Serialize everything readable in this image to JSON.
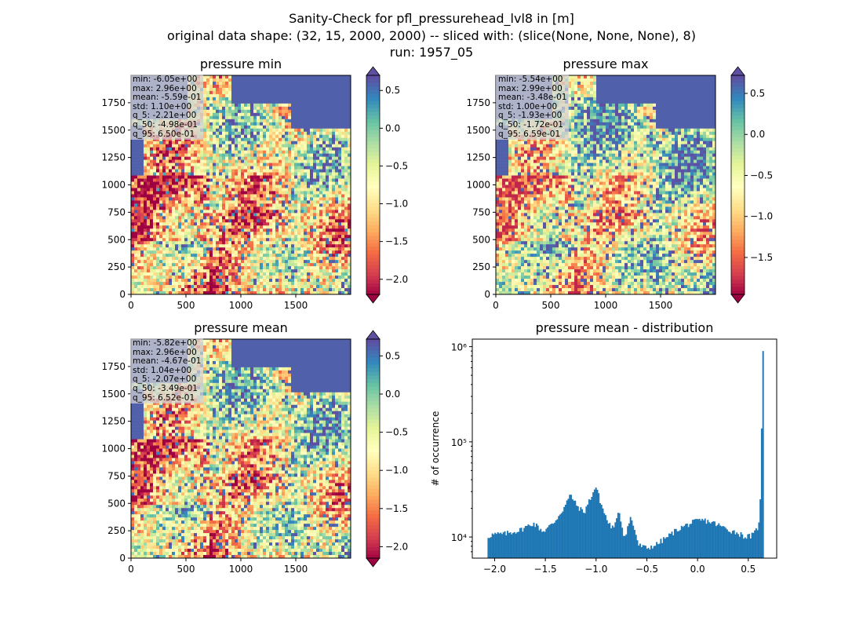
{
  "figure": {
    "title_lines": [
      "Sanity-Check for pfl_pressurehead_lvl8 in [m]",
      "original data shape: (32, 15, 2000, 2000) -- sliced with: (slice(None, None, None), 8)",
      "run: 1957_05"
    ]
  },
  "chart_data": [
    {
      "type": "heatmap",
      "title": "pressure min",
      "x_ticks": [
        "0",
        "500",
        "1000",
        "1500"
      ],
      "y_ticks": [
        "0",
        "250",
        "500",
        "750",
        "1000",
        "1250",
        "1500",
        "1750"
      ],
      "xlim": [
        0,
        2000
      ],
      "ylim": [
        0,
        2000
      ],
      "colorbar": {
        "vmin": -2.2,
        "vmax": 0.7,
        "ticks": [
          0.5,
          0.0,
          -0.5,
          -1.0,
          -1.5,
          -2.0
        ],
        "tick_labels": [
          "0.5",
          "0.0",
          "−0.5",
          "−1.0",
          "−1.5",
          "−2.0"
        ],
        "colormap": "Spectral"
      },
      "stats": [
        "min: -6.05e+00",
        "max: 2.96e+00",
        "mean: -5.59e-01",
        "std: 1.10e+00",
        "q_5: -2.21e+00",
        "q_50: -4.98e-01",
        "q_95: 6.50e-01"
      ]
    },
    {
      "type": "heatmap",
      "title": "pressure max",
      "x_ticks": [
        "0",
        "500",
        "1000",
        "1500"
      ],
      "y_ticks": [
        "0",
        "250",
        "500",
        "750",
        "1000",
        "1250",
        "1500",
        "1750"
      ],
      "xlim": [
        0,
        2000
      ],
      "ylim": [
        0,
        2000
      ],
      "colorbar": {
        "vmin": -1.95,
        "vmax": 0.72,
        "ticks": [
          0.5,
          0.0,
          -0.5,
          -1.0,
          -1.5
        ],
        "tick_labels": [
          "0.5",
          "0.0",
          "−0.5",
          "−1.0",
          "−1.5"
        ],
        "colormap": "Spectral"
      },
      "stats": [
        "min: -5.54e+00",
        "max: 2.99e+00",
        "mean: -3.48e-01",
        "std: 1.00e+00",
        "q_5: -1.93e+00",
        "q_50: -1.72e-01",
        "q_95: 6.59e-01"
      ]
    },
    {
      "type": "heatmap",
      "title": "pressure mean",
      "x_ticks": [
        "0",
        "500",
        "1000",
        "1500"
      ],
      "y_ticks": [
        "0",
        "250",
        "500",
        "750",
        "1000",
        "1250",
        "1500",
        "1750"
      ],
      "xlim": [
        0,
        2000
      ],
      "ylim": [
        0,
        2000
      ],
      "colorbar": {
        "vmin": -2.15,
        "vmax": 0.72,
        "ticks": [
          0.5,
          0.0,
          -0.5,
          -1.0,
          -1.5,
          -2.0
        ],
        "tick_labels": [
          "0.5",
          "0.0",
          "−0.5",
          "−1.0",
          "−1.5",
          "−2.0"
        ],
        "colormap": "Spectral"
      },
      "stats": [
        "min: -5.82e+00",
        "max: 2.96e+00",
        "mean: -4.67e-01",
        "std: 1.04e+00",
        "q_5: -2.07e+00",
        "q_50: -3.49e-01",
        "q_95: 6.52e-01"
      ]
    },
    {
      "type": "bar",
      "title": "pressure mean - distribution",
      "xlabel": "",
      "ylabel": "# of occurrence",
      "yscale": "log",
      "xlim": [
        -2.22,
        0.78
      ],
      "ylim": [
        6000,
        1200000
      ],
      "x_ticks": [
        -2.0,
        -1.5,
        -1.0,
        -0.5,
        0.0,
        0.5
      ],
      "x_tick_labels": [
        "−2.0",
        "−1.5",
        "−1.0",
        "−0.5",
        "0.0",
        "0.5"
      ],
      "y_ticks": [
        10000,
        100000,
        1000000
      ],
      "y_tick_labels": [
        "10⁴",
        "10⁵",
        "10⁶"
      ],
      "bar_color": "#1f77b4",
      "bin_range": [
        -2.07,
        0.652
      ],
      "bin_count": 200,
      "profile": [
        [
          -2.07,
          10000
        ],
        [
          -2.03,
          10600
        ],
        [
          -1.9,
          10800
        ],
        [
          -1.75,
          11800
        ],
        [
          -1.62,
          14000
        ],
        [
          -1.52,
          11500
        ],
        [
          -1.42,
          14000
        ],
        [
          -1.32,
          20000
        ],
        [
          -1.25,
          28000
        ],
        [
          -1.2,
          22000
        ],
        [
          -1.12,
          18000
        ],
        [
          -1.04,
          28000
        ],
        [
          -1.0,
          34000
        ],
        [
          -0.95,
          22000
        ],
        [
          -0.88,
          14000
        ],
        [
          -0.82,
          12000
        ],
        [
          -0.78,
          20000
        ],
        [
          -0.72,
          9800
        ],
        [
          -0.66,
          16000
        ],
        [
          -0.62,
          12000
        ],
        [
          -0.58,
          8200
        ],
        [
          -0.5,
          7600
        ],
        [
          -0.4,
          8400
        ],
        [
          -0.3,
          10000
        ],
        [
          -0.2,
          12000
        ],
        [
          -0.1,
          13500
        ],
        [
          0.0,
          14800
        ],
        [
          0.06,
          15000
        ],
        [
          0.15,
          14200
        ],
        [
          0.3,
          12000
        ],
        [
          0.4,
          11000
        ],
        [
          0.48,
          10000
        ],
        [
          0.55,
          10500
        ],
        [
          0.6,
          13000
        ],
        [
          0.625,
          30000
        ],
        [
          0.64,
          900000
        ]
      ]
    }
  ]
}
